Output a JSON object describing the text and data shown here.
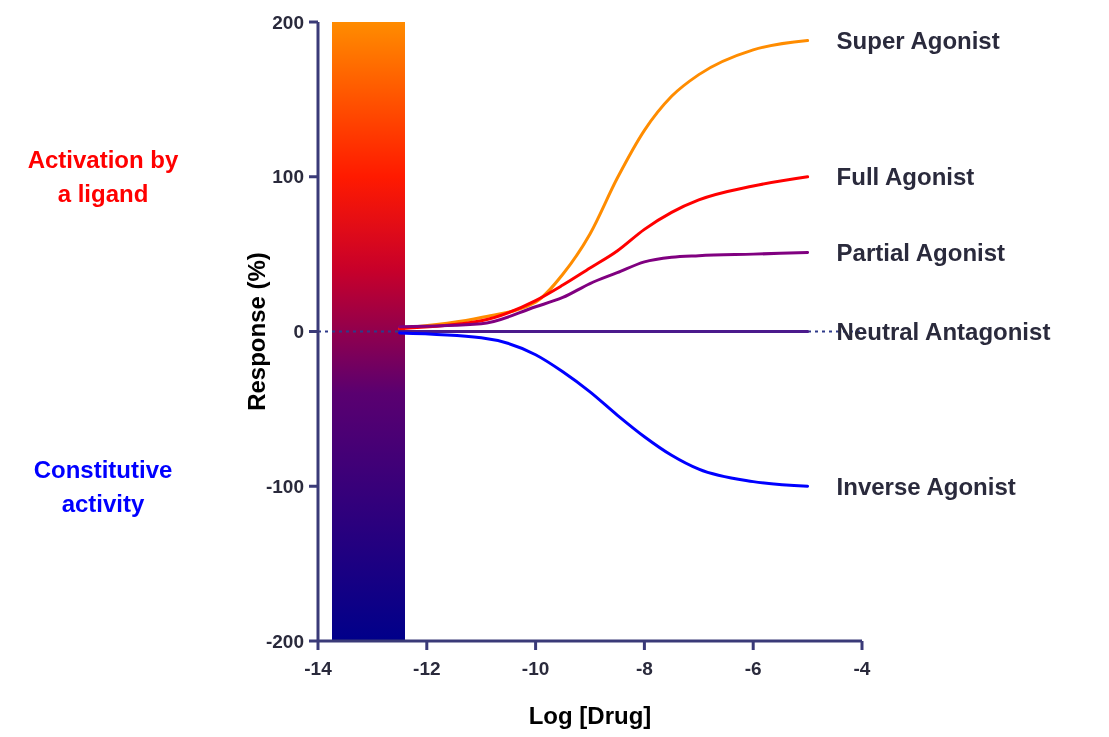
{
  "chart_data": {
    "type": "line",
    "xlabel": "Log [Drug]",
    "ylabel": "Response (%)",
    "x": [
      -12.5,
      -11,
      -10,
      -9.5,
      -9,
      -8.5,
      -8,
      -7.5,
      -7,
      -6,
      -5
    ],
    "series": [
      {
        "name": "Super Agonist",
        "color": "#ff8c00",
        "values": [
          2,
          9,
          19,
          37,
          63,
          99,
          130,
          152,
          166,
          182,
          188
        ]
      },
      {
        "name": "Full Agonist",
        "color": "#ff0000",
        "values": [
          2,
          7,
          20,
          30,
          41,
          52,
          66,
          77,
          85,
          94,
          100
        ]
      },
      {
        "name": "Partial Agonist",
        "color": "#800080",
        "values": [
          3,
          5,
          16,
          22,
          31,
          38,
          45,
          48,
          49,
          50,
          51
        ]
      },
      {
        "name": "Neutral Antagonist",
        "color": "#4b1a8c",
        "values": [
          0,
          0,
          0,
          0,
          0,
          0,
          0,
          0,
          0,
          0,
          0
        ]
      },
      {
        "name": "Inverse Agonist",
        "color": "#0000ff",
        "values": [
          -1,
          -4,
          -15,
          -26,
          -39,
          -54,
          -68,
          -80,
          -89,
          -97,
          -100
        ]
      }
    ],
    "xlim": [
      -14,
      -4
    ],
    "xticks": [
      -14,
      -12,
      -10,
      -8,
      -6,
      -4
    ],
    "ylim": [
      -200,
      200
    ],
    "yticks": [
      -200,
      -100,
      0,
      100,
      200
    ],
    "ref_lines": [
      {
        "axis": "y",
        "value": 0,
        "color": "#2e3a8a",
        "line_style": "dotted"
      }
    ],
    "annotations": [
      "Activation by a ligand",
      "Constitutive activity"
    ],
    "grid": false,
    "legend": false,
    "marker": "none",
    "line_style": "solid"
  }
}
